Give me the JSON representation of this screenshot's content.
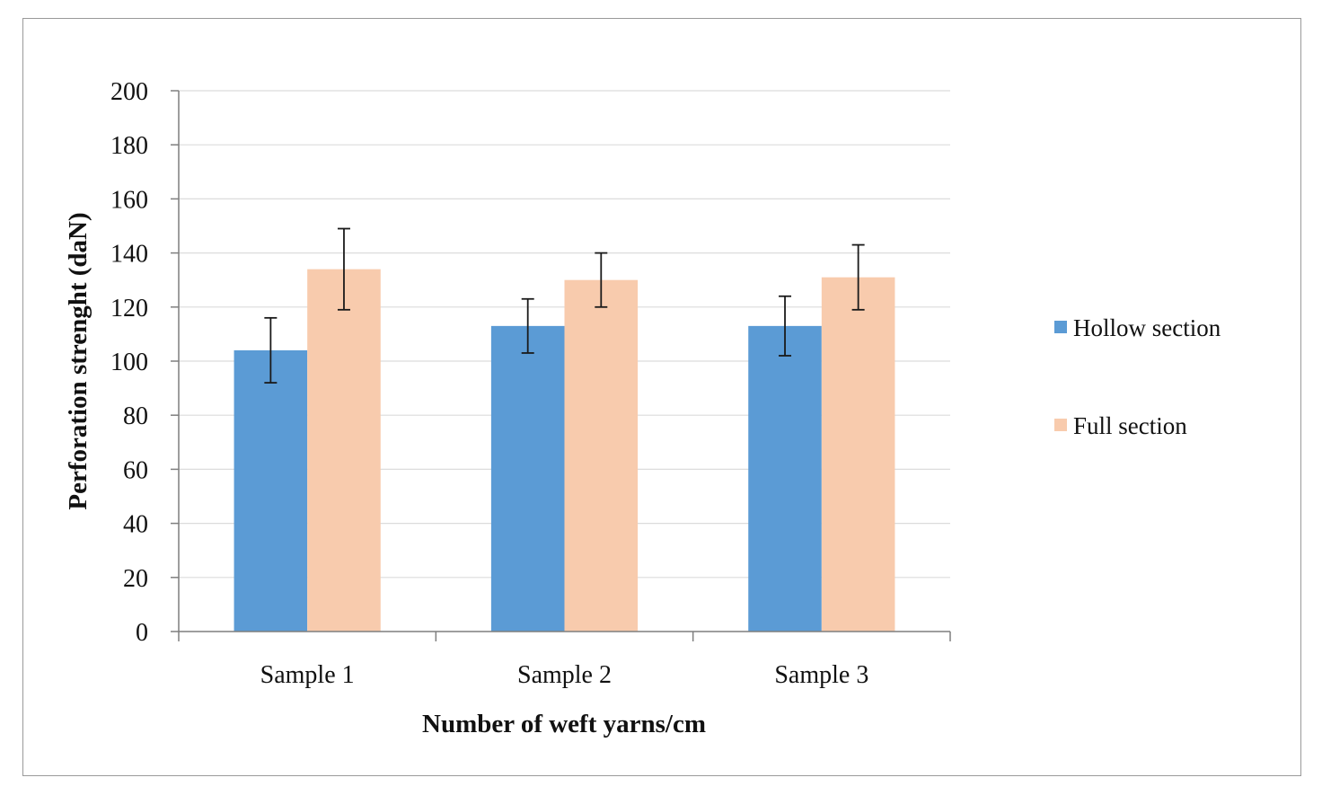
{
  "chart_data": {
    "type": "bar",
    "title": "",
    "xlabel": "Number of weft yarns/cm",
    "ylabel": "Perforation strenght (daN)",
    "ylim": [
      0,
      200
    ],
    "yticks": [
      0,
      20,
      40,
      60,
      80,
      100,
      120,
      140,
      160,
      180,
      200
    ],
    "categories": [
      "Sample 1",
      "Sample 2",
      "Sample 3"
    ],
    "grid": true,
    "legend_position": "right",
    "series": [
      {
        "name": "Hollow section",
        "color": "#5b9bd5",
        "values": [
          104,
          113,
          113
        ],
        "error": [
          12,
          10,
          11
        ]
      },
      {
        "name": "Full section",
        "color": "#f8cbad",
        "values": [
          134,
          130,
          131
        ],
        "error": [
          15,
          10,
          12
        ]
      }
    ]
  }
}
